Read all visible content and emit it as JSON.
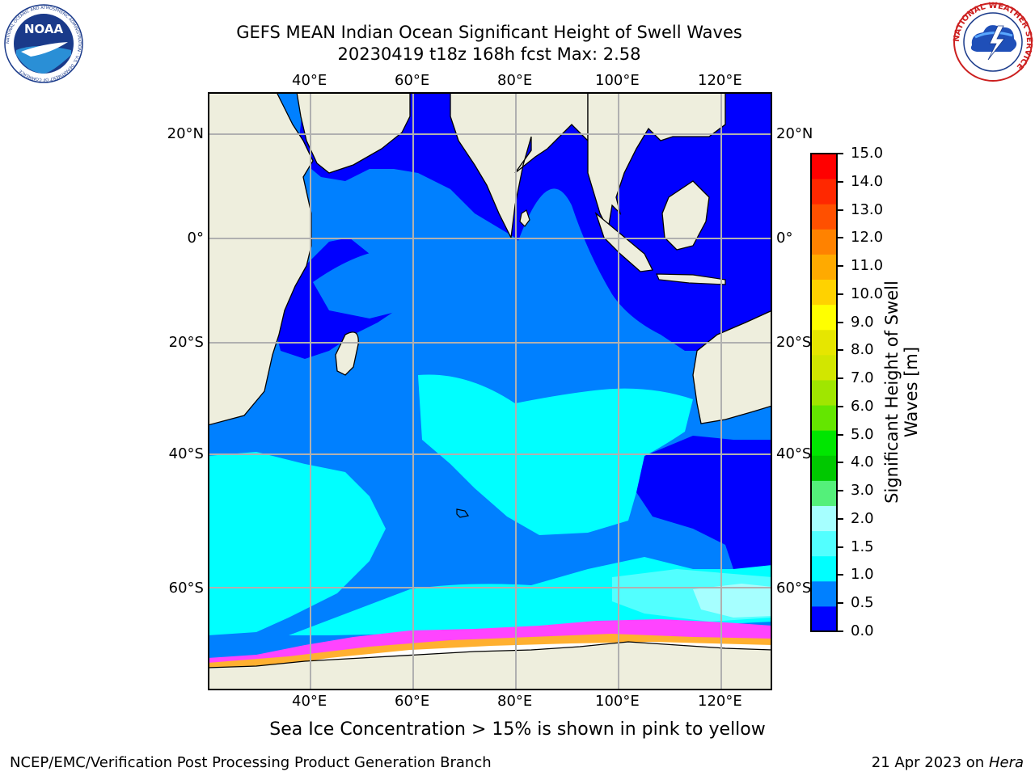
{
  "title": {
    "line1": "GEFS MEAN Indian Ocean Significant Height of Swell Waves",
    "line2": "20230419 t18z 168h fcst   Max: 2.58"
  },
  "logos": {
    "noaa_text": "NOAA",
    "noaa_ring": "NATIONAL OCEANIC AND ATMOSPHERIC ADMINISTRATION · U.S. DEPARTMENT OF COMMERCE",
    "nws_ring": "NATIONAL WEATHER SERVICE"
  },
  "map": {
    "lon_labels": [
      "40°E",
      "60°E",
      "80°E",
      "100°E",
      "120°E"
    ],
    "lat_labels": [
      "20°N",
      "0°",
      "20°S",
      "40°S",
      "60°S"
    ],
    "colors": {
      "ocean_0_05": "#0000ff",
      "ocean_05_10": "#0080ff",
      "ocean_10_15": "#00ffff",
      "ocean_15_20": "#52ffff",
      "ocean_20_25": "#a6ffff",
      "land": "#eeeedd",
      "ice_pink": "#ff44ff",
      "ice_orange": "#ffb030",
      "grid": "#b0b0b0"
    }
  },
  "colorbar": {
    "label": "Significant Height of Swell Waves [m]",
    "ticks": [
      "15.0",
      "14.0",
      "13.0",
      "12.0",
      "11.0",
      "10.0",
      "9.0",
      "8.0",
      "7.0",
      "6.0",
      "5.0",
      "4.0",
      "3.0",
      "2.0",
      "1.5",
      "1.0",
      "0.5",
      "0.0"
    ],
    "colors": [
      "#0000ff",
      "#0080ff",
      "#00ffff",
      "#52ffff",
      "#a6ffff",
      "#54f07a",
      "#00c800",
      "#00e600",
      "#64e600",
      "#a0e600",
      "#d2e600",
      "#e6e600",
      "#ffff00",
      "#ffd200",
      "#ffaa00",
      "#ff8200",
      "#ff5000",
      "#ff2800",
      "#ff0000"
    ]
  },
  "caption": "Sea Ice Concentration > 15% is shown in pink to yellow",
  "footer": {
    "left": "NCEP/EMC/Verification Post Processing Product Generation Branch",
    "right_date": "21 Apr 2023 on ",
    "right_host": "Hera"
  }
}
